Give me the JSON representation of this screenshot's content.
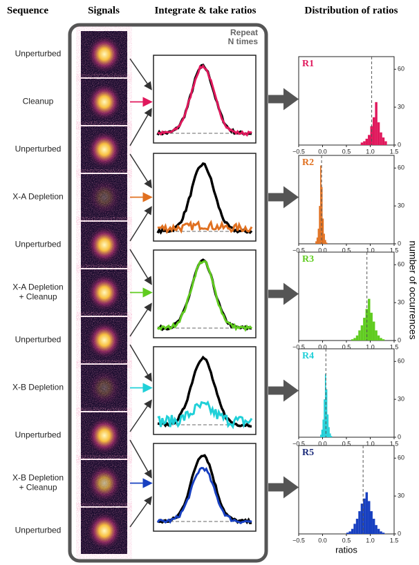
{
  "headers": [
    "Sequence",
    "Signals",
    "Integrate & take ratios",
    "Distribution of ratios"
  ],
  "sequence": [
    "Unperturbed",
    "Cleanup",
    "Unperturbed",
    "X-A Depletion",
    "Unperturbed",
    [
      "X-A Depletion",
      "+ Cleanup"
    ],
    "Unperturbed",
    "X-B Depletion",
    "Unperturbed",
    [
      "X-B Depletion",
      "+ Cleanup"
    ],
    "Unperturbed"
  ],
  "repeat_label": [
    "Repeat",
    "N times"
  ],
  "y_axis_label": "number of occurrences",
  "x_axis_label": "ratios",
  "chart_data": [
    {
      "type": "histogram",
      "title": "R1",
      "color": "#e0185c",
      "bins": [
        0.8,
        0.85,
        0.9,
        0.95,
        1.0,
        1.05,
        1.1,
        1.15,
        1.2,
        1.25,
        1.3,
        1.35
      ],
      "values": [
        2,
        3,
        5,
        8,
        15,
        22,
        34,
        18,
        10,
        6,
        3
      ],
      "reference_line": 1.03,
      "xlim": [
        -0.5,
        1.5
      ],
      "xticks": [
        {
          "value": -0.5,
          "label": "−0.5"
        },
        {
          "value": 0,
          "label": "0.0"
        },
        0.5,
        {
          "value": 1,
          "label": "1.0"
        },
        1.5
      ],
      "ylim": [
        0,
        70
      ],
      "yticks": [
        0,
        30,
        60
      ]
    },
    {
      "type": "histogram",
      "title": "R2",
      "color": "#e07020",
      "bins": [
        -0.15,
        -0.125,
        -0.1,
        -0.075,
        -0.05,
        -0.025,
        0,
        0.025,
        0.05,
        0.075,
        0.1
      ],
      "values": [
        2,
        5,
        12,
        30,
        62,
        45,
        20,
        8,
        3,
        1
      ],
      "reference_line": -0.02,
      "xlim": [
        -0.5,
        1.5
      ],
      "xticks": [
        {
          "value": -0.5,
          "label": "−0.5"
        },
        {
          "value": 0,
          "label": "0.0"
        },
        0.5,
        {
          "value": 1,
          "label": "1.0"
        },
        1.5
      ],
      "ylim": [
        0,
        70
      ],
      "yticks": [
        0,
        30,
        60
      ]
    },
    {
      "type": "histogram",
      "title": "R3",
      "color": "#60cc20",
      "bins": [
        0.6,
        0.65,
        0.7,
        0.75,
        0.8,
        0.85,
        0.9,
        0.95,
        1.0,
        1.05,
        1.1,
        1.15,
        1.2,
        1.25,
        1.3
      ],
      "values": [
        1,
        2,
        4,
        8,
        12,
        18,
        25,
        33,
        22,
        15,
        8,
        4,
        2,
        1
      ],
      "reference_line": 0.93,
      "xlim": [
        -0.5,
        1.5
      ],
      "xticks": [
        {
          "value": -0.5,
          "label": "−0.5"
        },
        {
          "value": 0,
          "label": "0.0"
        },
        0.5,
        {
          "value": 1,
          "label": "1.0"
        },
        1.5
      ],
      "ylim": [
        0,
        70
      ],
      "yticks": [
        0,
        30,
        60
      ]
    },
    {
      "type": "histogram",
      "title": "R4",
      "color": "#20d0d8",
      "bins": [
        -0.05,
        -0.025,
        0,
        0.025,
        0.05,
        0.075,
        0.1,
        0.125,
        0.15,
        0.175,
        0.2
      ],
      "values": [
        2,
        6,
        14,
        30,
        50,
        38,
        18,
        8,
        3,
        1
      ],
      "reference_line": 0.07,
      "xlim": [
        -0.5,
        1.5
      ],
      "xticks": [
        {
          "value": -0.5,
          "label": "−0.5"
        },
        {
          "value": 0,
          "label": "0.0"
        },
        0.5,
        {
          "value": 1,
          "label": "1.0"
        },
        1.5
      ],
      "ylim": [
        0,
        70
      ],
      "yticks": [
        0,
        30,
        60
      ]
    },
    {
      "type": "histogram",
      "title": "R5",
      "color": "#1840c0",
      "title_color": "#1a2a7a",
      "bins": [
        0.5,
        0.55,
        0.6,
        0.65,
        0.7,
        0.75,
        0.8,
        0.85,
        0.9,
        0.95,
        1.0,
        1.05,
        1.1,
        1.15,
        1.2,
        1.25,
        1.3
      ],
      "values": [
        1,
        2,
        4,
        8,
        12,
        18,
        24,
        28,
        33,
        26,
        18,
        12,
        7,
        4,
        2,
        1
      ],
      "reference_line": 0.85,
      "xlim": [
        -0.5,
        1.5
      ],
      "xticks": [
        {
          "value": -0.5,
          "label": "−0.5"
        },
        {
          "value": 0,
          "label": "0.0"
        },
        0.5,
        {
          "value": 1,
          "label": "1.0"
        },
        1.5
      ],
      "ylim": [
        0,
        70
      ],
      "yticks": [
        0,
        30,
        60
      ]
    }
  ]
}
